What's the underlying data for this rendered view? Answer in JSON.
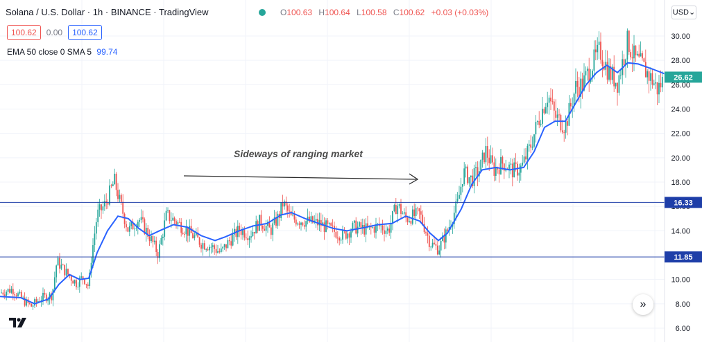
{
  "header": {
    "symbol": "Solana / U.S. Dollar",
    "interval": "1h",
    "exchange": "BINANCE",
    "platform": "TradingView",
    "separator": "·"
  },
  "ohlc": {
    "o_label": "O",
    "o": "100.63",
    "h_label": "H",
    "h": "100.64",
    "l_label": "L",
    "l": "100.58",
    "c_label": "C",
    "c": "100.62",
    "change": "+0.03 (+0.03%)"
  },
  "trade": {
    "sell": "100.62",
    "spread": "0.00",
    "buy": "100.62"
  },
  "indicator": {
    "label": "EMA 50 close 0 SMA 5",
    "value": "99.74"
  },
  "currency": "USD",
  "colors": {
    "up": "#26a69a",
    "down": "#ef5350",
    "ema": "#2962ff",
    "hline": "#1e3ea8",
    "last_price": "#26a69a",
    "axis_text": "#131722"
  },
  "chart_data": {
    "type": "candlestick",
    "annotation": "Sideways of ranging market",
    "ylim": [
      5.5,
      31
    ],
    "y_ticks": [
      "6.00",
      "8.00",
      "10.00",
      "12.00",
      "14.00",
      "16.00",
      "18.00",
      "20.00",
      "22.00",
      "24.00",
      "26.00",
      "28.00",
      "30.00"
    ],
    "horizontal_lines": [
      {
        "value": 16.33,
        "label": "16.33"
      },
      {
        "value": 11.85,
        "label": "11.85"
      }
    ],
    "last_price": {
      "value": 26.62,
      "label": "26.62"
    },
    "price_path": [
      [
        0,
        8.9
      ],
      [
        18,
        9.2
      ],
      [
        35,
        8.2
      ],
      [
        45,
        7.8
      ],
      [
        60,
        8.5
      ],
      [
        75,
        8.7
      ],
      [
        82,
        11.5
      ],
      [
        95,
        10.6
      ],
      [
        110,
        9.7
      ],
      [
        120,
        10.2
      ],
      [
        128,
        9.4
      ],
      [
        132,
        12.0
      ],
      [
        140,
        15.3
      ],
      [
        152,
        16.2
      ],
      [
        165,
        18.1
      ],
      [
        172,
        16.5
      ],
      [
        185,
        14.0
      ],
      [
        200,
        15.0
      ],
      [
        215,
        13.6
      ],
      [
        228,
        12.1
      ],
      [
        240,
        15.3
      ],
      [
        255,
        14.7
      ],
      [
        270,
        14.0
      ],
      [
        290,
        13.0
      ],
      [
        305,
        12.7
      ],
      [
        318,
        12.2
      ],
      [
        330,
        13.1
      ],
      [
        345,
        14.1
      ],
      [
        360,
        13.7
      ],
      [
        375,
        14.8
      ],
      [
        390,
        14.0
      ],
      [
        402,
        15.2
      ],
      [
        408,
        16.3
      ],
      [
        420,
        15.0
      ],
      [
        440,
        14.8
      ],
      [
        460,
        14.6
      ],
      [
        480,
        14.0
      ],
      [
        495,
        13.6
      ],
      [
        510,
        14.3
      ],
      [
        530,
        14.1
      ],
      [
        548,
        14.4
      ],
      [
        560,
        14.0
      ],
      [
        572,
        16.2
      ],
      [
        585,
        15.0
      ],
      [
        605,
        15.4
      ],
      [
        620,
        13.0
      ],
      [
        632,
        12.5
      ],
      [
        645,
        14.0
      ],
      [
        660,
        16.3
      ],
      [
        668,
        18.8
      ],
      [
        680,
        18.2
      ],
      [
        692,
        19.1
      ],
      [
        700,
        20.6
      ],
      [
        712,
        19.0
      ],
      [
        725,
        19.6
      ],
      [
        740,
        18.9
      ],
      [
        752,
        19.2
      ],
      [
        765,
        21.0
      ],
      [
        775,
        22.9
      ],
      [
        790,
        25.2
      ],
      [
        800,
        23.4
      ],
      [
        815,
        22.6
      ],
      [
        830,
        25.8
      ],
      [
        840,
        26.0
      ],
      [
        852,
        27.5
      ],
      [
        865,
        28.8
      ],
      [
        878,
        27.0
      ],
      [
        890,
        26.2
      ],
      [
        905,
        29.6
      ],
      [
        915,
        28.1
      ],
      [
        925,
        27.6
      ],
      [
        940,
        26.4
      ],
      [
        948,
        25.6
      ],
      [
        958,
        26.6
      ]
    ],
    "ema_path": [
      [
        0,
        8.6
      ],
      [
        30,
        8.5
      ],
      [
        50,
        8.0
      ],
      [
        70,
        8.4
      ],
      [
        85,
        9.6
      ],
      [
        100,
        10.4
      ],
      [
        115,
        10.0
      ],
      [
        128,
        10.1
      ],
      [
        140,
        12.2
      ],
      [
        155,
        14.0
      ],
      [
        170,
        15.2
      ],
      [
        185,
        15.0
      ],
      [
        200,
        14.2
      ],
      [
        215,
        13.6
      ],
      [
        230,
        14.0
      ],
      [
        250,
        14.5
      ],
      [
        270,
        14.3
      ],
      [
        290,
        13.6
      ],
      [
        310,
        13.2
      ],
      [
        325,
        13.5
      ],
      [
        345,
        14.0
      ],
      [
        365,
        14.4
      ],
      [
        385,
        14.6
      ],
      [
        405,
        15.3
      ],
      [
        420,
        15.5
      ],
      [
        440,
        15.0
      ],
      [
        460,
        14.6
      ],
      [
        480,
        14.2
      ],
      [
        500,
        14.0
      ],
      [
        520,
        14.2
      ],
      [
        545,
        14.5
      ],
      [
        565,
        14.6
      ],
      [
        585,
        15.2
      ],
      [
        605,
        14.8
      ],
      [
        620,
        13.8
      ],
      [
        632,
        13.2
      ],
      [
        645,
        13.8
      ],
      [
        665,
        15.8
      ],
      [
        680,
        17.8
      ],
      [
        695,
        19.0
      ],
      [
        715,
        19.2
      ],
      [
        735,
        19.0
      ],
      [
        755,
        19.2
      ],
      [
        770,
        20.5
      ],
      [
        785,
        22.5
      ],
      [
        800,
        23.0
      ],
      [
        815,
        23.0
      ],
      [
        830,
        24.5
      ],
      [
        845,
        26.0
      ],
      [
        860,
        27.0
      ],
      [
        875,
        27.6
      ],
      [
        890,
        27.0
      ],
      [
        905,
        27.8
      ],
      [
        920,
        27.7
      ],
      [
        940,
        27.3
      ],
      [
        958,
        26.9
      ]
    ]
  }
}
